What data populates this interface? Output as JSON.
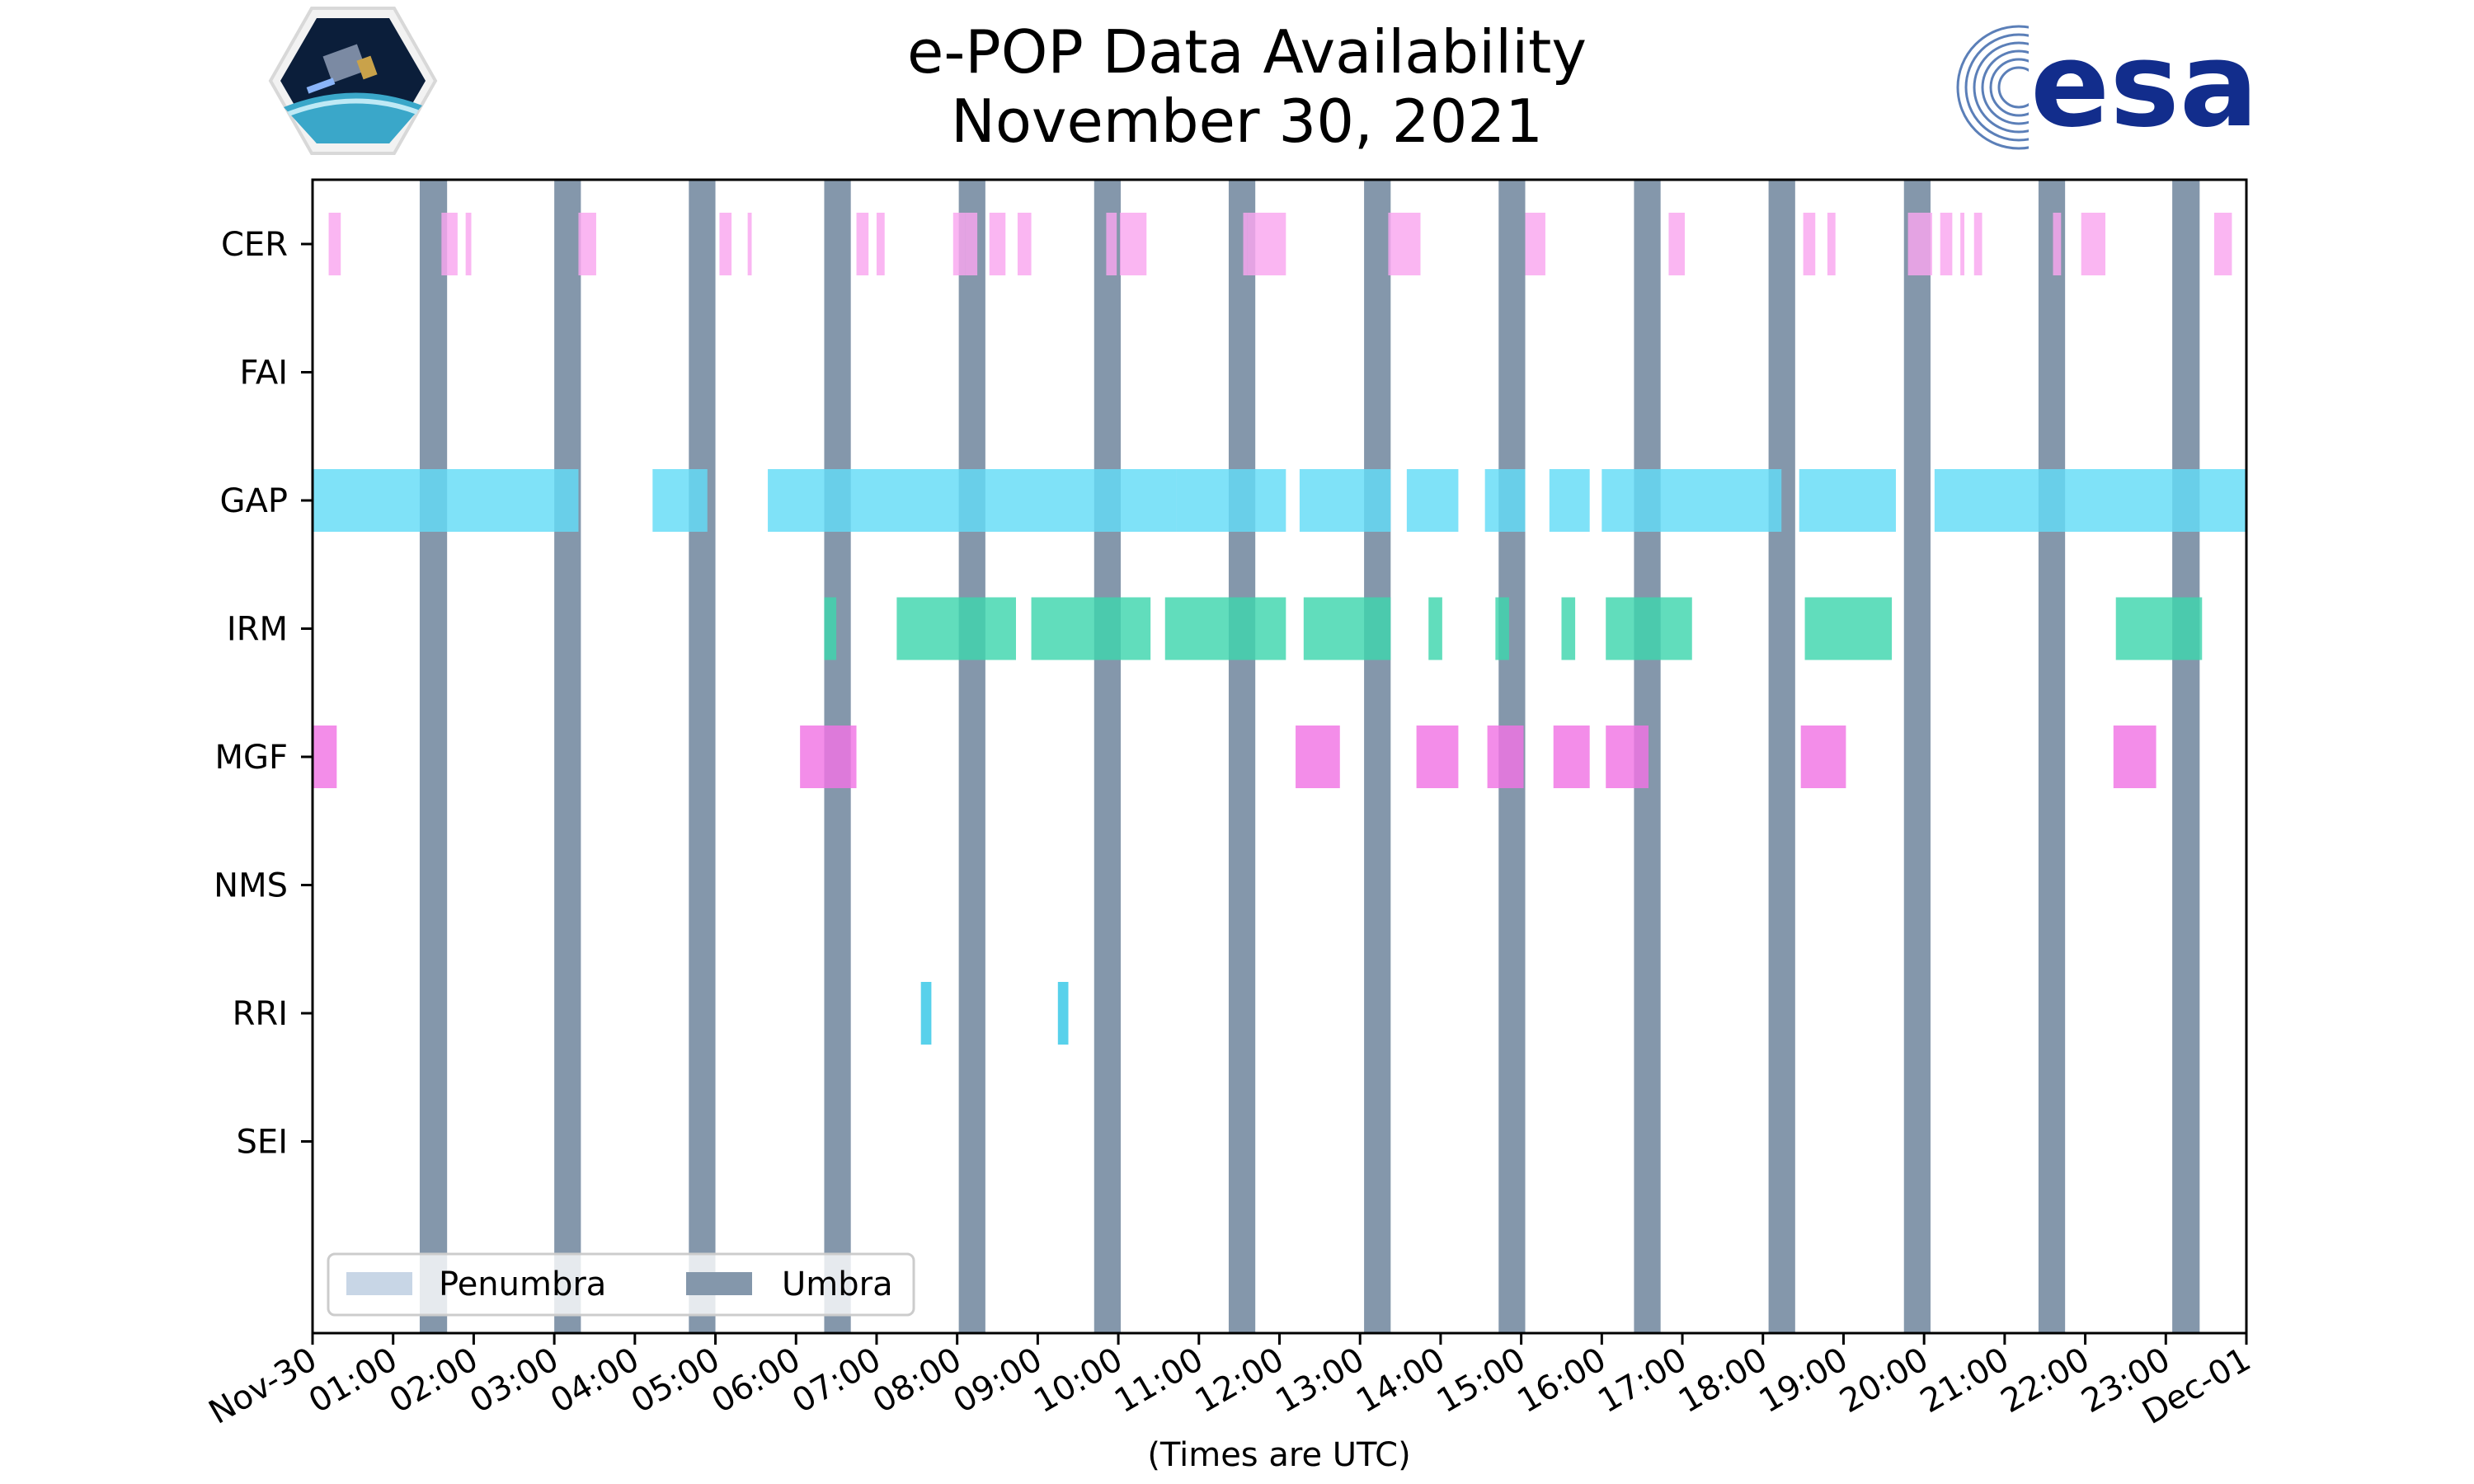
{
  "chart_data": {
    "type": "timeline",
    "title": "e-POP Data Availability",
    "subtitle": "November 30, 2021",
    "xlabel": "(Times are UTC)",
    "xlim": [
      0,
      24
    ],
    "xtick_labels": [
      "Nov-30",
      "01:00",
      "02:00",
      "03:00",
      "04:00",
      "05:00",
      "06:00",
      "07:00",
      "08:00",
      "09:00",
      "10:00",
      "11:00",
      "12:00",
      "13:00",
      "14:00",
      "15:00",
      "16:00",
      "17:00",
      "18:00",
      "19:00",
      "20:00",
      "21:00",
      "22:00",
      "23:00",
      "Dec-01"
    ],
    "instruments": [
      "CER",
      "FAI",
      "GAP",
      "IRM",
      "MGF",
      "NMS",
      "RRI",
      "SEI"
    ],
    "colors": {
      "CER": "#f9a6ef",
      "GAP": "#63dcf7",
      "IRM": "#3ed6ad",
      "MGF": "#f074e4",
      "RRI": "#33c7e6",
      "umbra": "#8497ab",
      "penumbra": "#c8d6e6",
      "axis": "#000000"
    },
    "umbra": [
      [
        1.33,
        1.67
      ],
      [
        3.0,
        3.33
      ],
      [
        4.67,
        5.0
      ],
      [
        6.35,
        6.68
      ],
      [
        8.02,
        8.35
      ],
      [
        9.7,
        10.03
      ],
      [
        11.37,
        11.7
      ],
      [
        13.05,
        13.38
      ],
      [
        14.72,
        15.05
      ],
      [
        16.4,
        16.73
      ],
      [
        18.07,
        18.4
      ],
      [
        19.75,
        20.08
      ],
      [
        21.42,
        21.75
      ],
      [
        23.08,
        23.42
      ]
    ],
    "penumbra": [],
    "series": [
      {
        "name": "CER",
        "intervals": [
          [
            0.2,
            0.35
          ],
          [
            1.6,
            1.8
          ],
          [
            1.9,
            1.97
          ],
          [
            3.3,
            3.52
          ],
          [
            5.05,
            5.2
          ],
          [
            5.4,
            5.45
          ],
          [
            6.75,
            6.9
          ],
          [
            7.0,
            7.1
          ],
          [
            7.95,
            8.1
          ],
          [
            8.1,
            8.25
          ],
          [
            8.4,
            8.6
          ],
          [
            8.75,
            8.92
          ],
          [
            9.85,
            9.98
          ],
          [
            10.02,
            10.35
          ],
          [
            11.55,
            11.6
          ],
          [
            11.6,
            12.08
          ],
          [
            13.35,
            13.75
          ],
          [
            15.05,
            15.3
          ],
          [
            16.83,
            17.03
          ],
          [
            18.5,
            18.65
          ],
          [
            18.8,
            18.9
          ],
          [
            19.8,
            20.1
          ],
          [
            20.2,
            20.35
          ],
          [
            20.45,
            20.5
          ],
          [
            20.62,
            20.72
          ],
          [
            21.6,
            21.7
          ],
          [
            21.95,
            22.25
          ],
          [
            23.6,
            23.82
          ]
        ]
      },
      {
        "name": "FAI",
        "intervals": []
      },
      {
        "name": "GAP",
        "intervals": [
          [
            0,
            3.3
          ],
          [
            4.22,
            4.9
          ],
          [
            5.65,
            10.72
          ],
          [
            10.72,
            12.08
          ],
          [
            12.25,
            13.38
          ],
          [
            13.58,
            14.22
          ],
          [
            14.55,
            15.05
          ],
          [
            15.35,
            15.85
          ],
          [
            16.0,
            18.23
          ],
          [
            18.45,
            19.65
          ],
          [
            20.13,
            24.0
          ]
        ]
      },
      {
        "name": "IRM",
        "intervals": [
          [
            6.35,
            6.5
          ],
          [
            7.25,
            8.73
          ],
          [
            8.92,
            10.4
          ],
          [
            10.58,
            12.08
          ],
          [
            12.3,
            13.38
          ],
          [
            13.85,
            14.02
          ],
          [
            14.68,
            14.85
          ],
          [
            15.5,
            15.67
          ],
          [
            16.05,
            17.12
          ],
          [
            18.52,
            19.6
          ],
          [
            22.38,
            23.45
          ]
        ]
      },
      {
        "name": "MGF",
        "intervals": [
          [
            0.0,
            0.3
          ],
          [
            6.05,
            6.75
          ],
          [
            12.2,
            12.75
          ],
          [
            13.7,
            14.22
          ],
          [
            14.58,
            15.03
          ],
          [
            15.4,
            15.85
          ],
          [
            16.05,
            16.58
          ],
          [
            18.47,
            19.03
          ],
          [
            22.35,
            22.88
          ]
        ]
      },
      {
        "name": "NMS",
        "intervals": []
      },
      {
        "name": "RRI",
        "intervals": [
          [
            7.55,
            7.68
          ],
          [
            9.25,
            9.38
          ]
        ]
      },
      {
        "name": "SEI",
        "intervals": []
      }
    ],
    "legend": {
      "position": "lower-left",
      "entries": [
        {
          "label": "Penumbra",
          "color": "#c8d6e6"
        },
        {
          "label": "Umbra",
          "color": "#8497ab"
        }
      ]
    }
  }
}
